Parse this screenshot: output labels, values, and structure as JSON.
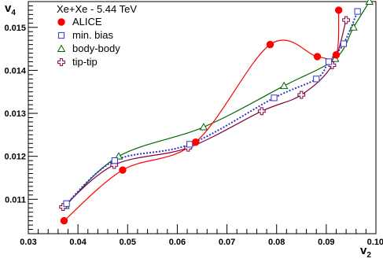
{
  "chart_data": {
    "type": "scatter",
    "title": "",
    "xlabel": {
      "main": "v",
      "sub": "2"
    },
    "ylabel": {
      "main": "v",
      "sub": "4"
    },
    "xlim": [
      0.03,
      0.1
    ],
    "ylim": [
      0.0102,
      0.0156
    ],
    "xticks": [
      {
        "value": 0.03,
        "label": "0.03"
      },
      {
        "value": 0.04,
        "label": "0.04"
      },
      {
        "value": 0.05,
        "label": "0.05"
      },
      {
        "value": 0.06,
        "label": "0.06"
      },
      {
        "value": 0.07,
        "label": "0.07"
      },
      {
        "value": 0.08,
        "label": "0.08"
      },
      {
        "value": 0.09,
        "label": "0.09"
      },
      {
        "value": 0.1,
        "label": "0.10"
      }
    ],
    "yticks": [
      {
        "value": 0.011,
        "label": "0.011"
      },
      {
        "value": 0.012,
        "label": "0.012"
      },
      {
        "value": 0.013,
        "label": "0.013"
      },
      {
        "value": 0.014,
        "label": "0.014"
      },
      {
        "value": 0.015,
        "label": "0.015"
      }
    ],
    "grid": false,
    "legend": {
      "title": "Xe+Xe - 5.44 TeV",
      "position": "top-left"
    },
    "series": [
      {
        "name": "ALICE",
        "marker": "filled-circle",
        "color": "#ff0000",
        "line_style": "solid",
        "x": [
          0.0372,
          0.049,
          0.0637,
          0.0787,
          0.0882,
          0.092,
          0.0925
        ],
        "y": [
          0.0105,
          0.01168,
          0.01233,
          0.0146,
          0.01432,
          0.01436,
          0.0154
        ]
      },
      {
        "name": "min. bias",
        "marker": "open-square",
        "color": "#3333cc",
        "line_style": "dotted",
        "x": [
          0.0377,
          0.0474,
          0.0625,
          0.0795,
          0.088,
          0.0905,
          0.0935,
          0.0963
        ],
        "y": [
          0.0109,
          0.0119,
          0.01228,
          0.01336,
          0.0138,
          0.0142,
          0.01462,
          0.01537
        ]
      },
      {
        "name": "body-body",
        "marker": "open-triangle",
        "color": "#006600",
        "line_style": "solid",
        "x": [
          0.0375,
          0.0482,
          0.0653,
          0.0815,
          0.0918,
          0.0955,
          0.0987
        ],
        "y": [
          0.01085,
          0.012,
          0.01268,
          0.01364,
          0.01427,
          0.015,
          0.0156
        ]
      },
      {
        "name": "tip-tip",
        "marker": "open-cross",
        "color": "#800040",
        "line_style": "solid",
        "x": [
          0.037,
          0.0473,
          0.0622,
          0.077,
          0.085,
          0.0912,
          0.094
        ],
        "y": [
          0.01082,
          0.0118,
          0.0122,
          0.01305,
          0.01343,
          0.01412,
          0.01517
        ]
      }
    ]
  }
}
